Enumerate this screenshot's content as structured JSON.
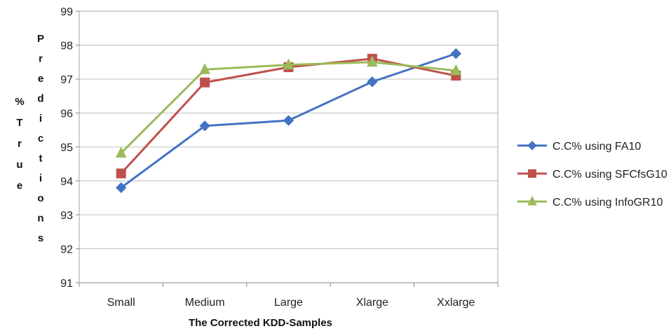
{
  "chart_data": {
    "type": "line",
    "title": "",
    "xlabel": "The Corrected KDD-Samples",
    "ylabel_lines": [
      "%",
      "True",
      "Predictions"
    ],
    "categories": [
      "Small",
      "Medium",
      "Large",
      "Xlarge",
      "Xxlarge"
    ],
    "ylim": [
      91,
      99
    ],
    "yticks": [
      "91",
      "92",
      "93",
      "94",
      "95",
      "96",
      "97",
      "98",
      "99"
    ],
    "grid": true,
    "legend_position": "right",
    "series": [
      {
        "name": "C.C% using FA10",
        "color": "#4472C4",
        "marker": "diamond",
        "values": [
          93.8,
          95.62,
          95.78,
          96.92,
          97.75
        ]
      },
      {
        "name": "C.C% using SFCfsG10",
        "color": "#C0504D",
        "marker": "square",
        "values": [
          94.22,
          96.9,
          97.35,
          97.6,
          97.1
        ]
      },
      {
        "name": "C.C% using InfoGR10",
        "color": "#9BBB59",
        "marker": "triangle",
        "values": [
          94.82,
          97.28,
          97.42,
          97.5,
          97.25
        ]
      }
    ]
  }
}
